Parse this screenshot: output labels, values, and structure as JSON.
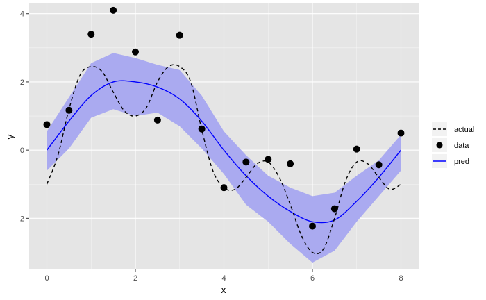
{
  "chart_data": {
    "type": "line",
    "title": "",
    "xlabel": "x",
    "ylabel": "y",
    "xlim": [
      -0.4,
      8.4
    ],
    "ylim": [
      -3.5,
      4.3
    ],
    "x_ticks": [
      0,
      2,
      4,
      6,
      8
    ],
    "y_ticks": [
      -2,
      0,
      2,
      4
    ],
    "grid": true,
    "legend_position": "right",
    "colors": {
      "panel_background": "#e5e5e5",
      "grid": "#ffffff",
      "ribbon": "#aaaaf0",
      "pred": "#0000ff",
      "actual": "#000000",
      "data": "#000000"
    },
    "legend": [
      {
        "key": "actual",
        "label": "actual",
        "style": "dashed-line"
      },
      {
        "key": "data",
        "label": "data",
        "style": "point"
      },
      {
        "key": "pred",
        "label": "pred",
        "style": "solid-line"
      }
    ],
    "data_points": {
      "x": [
        0,
        0.5,
        1,
        1.5,
        2,
        2.5,
        3,
        3.5,
        4,
        4.5,
        5,
        5.5,
        6,
        6.5,
        7,
        7.5,
        8
      ],
      "y": [
        0.75,
        1.17,
        3.4,
        4.1,
        2.88,
        0.88,
        3.37,
        0.62,
        -1.1,
        -0.35,
        -0.27,
        -0.4,
        -2.23,
        -1.72,
        0.03,
        -0.43,
        0.5
      ]
    },
    "actual": {
      "x": [
        0,
        0.25,
        0.5,
        0.75,
        1,
        1.25,
        1.5,
        1.75,
        2,
        2.25,
        2.5,
        2.75,
        3,
        3.25,
        3.5,
        3.75,
        4,
        4.25,
        4.5,
        4.75,
        5,
        5.25,
        5.5,
        5.75,
        6,
        6.25,
        6.5,
        6.75,
        7,
        7.25,
        7.5,
        7.75,
        8
      ],
      "y": [
        -1.0,
        -0.15,
        1.2,
        2.2,
        2.45,
        2.3,
        1.7,
        1.15,
        1.0,
        1.25,
        2.0,
        2.45,
        2.45,
        2.0,
        0.6,
        -0.6,
        -1.1,
        -1.15,
        -0.8,
        -0.4,
        -0.35,
        -0.8,
        -1.6,
        -2.5,
        -3.0,
        -2.9,
        -2.0,
        -0.9,
        -0.35,
        -0.4,
        -0.8,
        -1.15,
        -1.0
      ]
    },
    "pred": {
      "x": [
        0,
        0.5,
        1,
        1.5,
        2,
        2.5,
        3,
        3.5,
        4,
        4.5,
        5,
        5.5,
        6,
        6.5,
        7,
        7.5,
        8
      ],
      "y": [
        0.0,
        0.85,
        1.6,
        2.0,
        2.0,
        1.85,
        1.5,
        0.85,
        0.0,
        -0.75,
        -1.35,
        -1.8,
        -2.1,
        -2.05,
        -1.5,
        -0.8,
        0.0
      ]
    },
    "ribbon": {
      "x": [
        0,
        0.5,
        1,
        1.5,
        2,
        2.5,
        3,
        3.5,
        4,
        4.5,
        5,
        5.5,
        6,
        6.5,
        7,
        7.5,
        8
      ],
      "ymin": [
        -0.6,
        0.05,
        0.95,
        1.2,
        1.0,
        1.1,
        0.7,
        0.05,
        -0.7,
        -1.6,
        -2.1,
        -2.75,
        -3.3,
        -2.95,
        -2.1,
        -1.35,
        -0.6
      ],
      "ymax": [
        0.55,
        1.55,
        2.55,
        2.85,
        2.7,
        2.5,
        2.35,
        1.6,
        0.55,
        -0.15,
        -0.75,
        -1.1,
        -1.35,
        -1.25,
        -0.75,
        -0.3,
        0.45
      ]
    }
  }
}
